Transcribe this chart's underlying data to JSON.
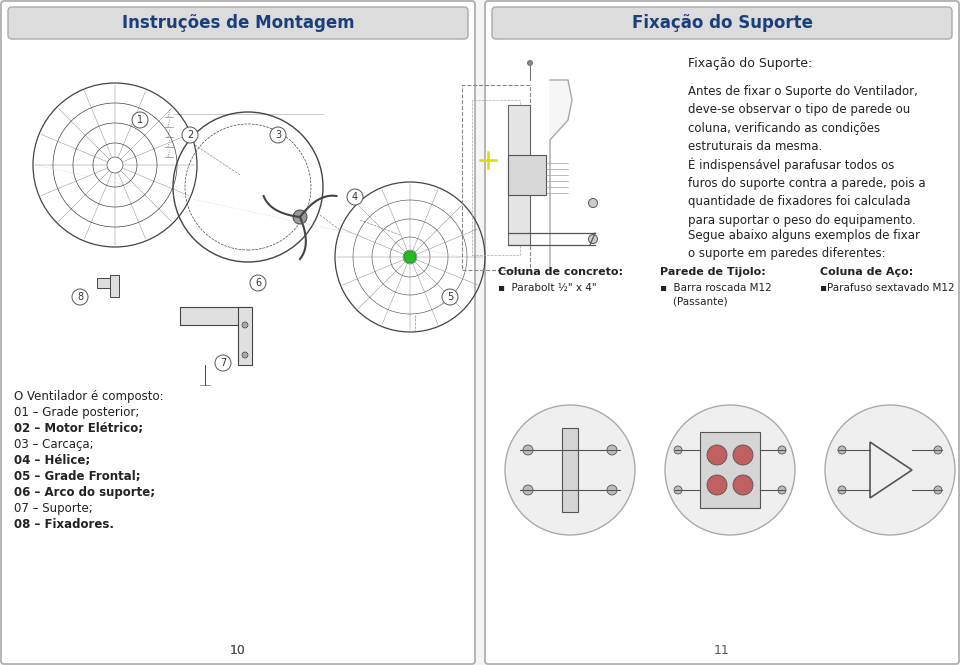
{
  "bg_color": "#f5f5f5",
  "panel_bg": "#ffffff",
  "border_color": "#aaaaaa",
  "header_bg": "#dcdcdc",
  "header_text_color": "#1a3f7a",
  "left_title": "Instruções de Montagem",
  "right_title": "Fixação do Suporte",
  "right_subtitle": "Fixação do Suporte:",
  "para1": "Antes de fixar o Suporte do Ventilador,\ndeve-se observar o tipo de parede ou\ncoluna, verificando as condições\nestruturais da mesma.",
  "para2": "É indispensável parafusar todos os\nfuros do suporte contra a parede, pois a\nquantidade de fixadores foi calculada\npara suportar o peso do equipamento.",
  "para3": "Segue abaixo alguns exemplos de fixar\no suporte em paredes diferentes:",
  "col1_title": "Coluna de concreto:",
  "col1_item": "▪  Parabolt ½\" x 4\"",
  "col2_title": "Parede de Tijolo:",
  "col2_item": "▪  Barra roscada M12\n    (Passante)",
  "col3_title": "Coluna de Aço:",
  "col3_item": "▪Parafuso sextavado M12",
  "parts_title": "O Ventilador é composto:",
  "parts": [
    "01 – Grade posterior;",
    "02 – Motor Elétrico;",
    "03 – Carcaça;",
    "04 – Hélice;",
    "05 – Grade Frontal;",
    "06 – Arco do suporte;",
    "07 – Suporte;",
    "08 – Fixadores."
  ],
  "parts_bold": [
    false,
    true,
    false,
    true,
    true,
    true,
    false,
    true
  ],
  "page_left": "10",
  "page_right": "11"
}
